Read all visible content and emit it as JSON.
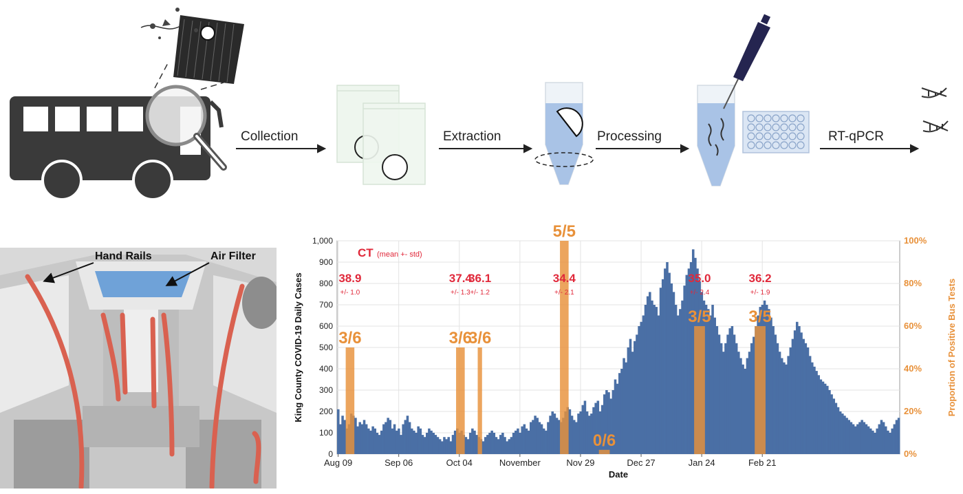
{
  "pipeline": {
    "steps": [
      {
        "label": "Collection"
      },
      {
        "label": "Extraction"
      },
      {
        "label": "Processing"
      },
      {
        "label": "RT-qPCR"
      }
    ]
  },
  "bus_interior": {
    "callouts": {
      "hand_rails": "Hand Rails",
      "air_filter": "Air Filter"
    }
  },
  "colors": {
    "cases_bar": "#4a6fa5",
    "positivity_bar": "#e8913a",
    "ct_text": "#e0283a",
    "rail_red": "#d96150",
    "filter_blue": "#6fa2d8"
  },
  "chart_data": {
    "type": "bar",
    "title": "",
    "xlabel": "Date",
    "ylabel": "King County COVID-19 Daily Cases",
    "y2label": "Proportion of Positive Bus Tests",
    "ylim": [
      0,
      1000
    ],
    "y2lim": [
      0,
      100
    ],
    "yticks": [
      "0",
      "100",
      "200",
      "300",
      "400",
      "500",
      "600",
      "700",
      "800",
      "900",
      "1,000"
    ],
    "y2ticks": [
      "0%",
      "20%",
      "40%",
      "60%",
      "80%",
      "100%"
    ],
    "xticks": [
      "Aug 09",
      "Sep 06",
      "Oct 04",
      "November",
      "Nov 29",
      "Dec 27",
      "Jan 24",
      "Feb 21"
    ],
    "ct_header": {
      "ct": "CT",
      "sub": "(mean +- std)"
    },
    "daily_cases": {
      "name": "King County Daily Cases",
      "values": [
        210,
        140,
        180,
        160,
        120,
        140,
        190,
        180,
        170,
        130,
        150,
        140,
        160,
        140,
        120,
        110,
        130,
        120,
        100,
        90,
        110,
        140,
        150,
        170,
        160,
        120,
        140,
        110,
        120,
        90,
        140,
        160,
        180,
        150,
        120,
        110,
        100,
        130,
        120,
        90,
        80,
        100,
        120,
        110,
        100,
        90,
        80,
        70,
        60,
        80,
        70,
        80,
        60,
        90,
        110,
        120,
        100,
        110,
        90,
        80,
        70,
        100,
        120,
        110,
        90,
        80,
        70,
        60,
        80,
        90,
        100,
        110,
        100,
        80,
        70,
        90,
        100,
        80,
        60,
        70,
        80,
        100,
        110,
        120,
        100,
        130,
        140,
        120,
        110,
        150,
        160,
        180,
        170,
        150,
        140,
        120,
        110,
        150,
        180,
        200,
        190,
        170,
        160,
        150,
        170,
        200,
        220,
        210,
        180,
        160,
        150,
        190,
        200,
        230,
        250,
        200,
        180,
        190,
        220,
        240,
        250,
        200,
        230,
        280,
        300,
        290,
        260,
        300,
        350,
        330,
        380,
        400,
        450,
        430,
        500,
        540,
        480,
        530,
        560,
        600,
        620,
        650,
        700,
        740,
        760,
        720,
        700,
        690,
        650,
        780,
        820,
        870,
        900,
        850,
        800,
        760,
        700,
        650,
        680,
        720,
        790,
        840,
        870,
        900,
        960,
        920,
        870,
        810,
        760,
        720,
        700,
        680,
        650,
        700,
        640,
        600,
        560,
        520,
        480,
        520,
        560,
        590,
        600,
        560,
        520,
        480,
        450,
        420,
        400,
        450,
        480,
        520,
        550,
        600,
        650,
        690,
        700,
        720,
        700,
        680,
        640,
        600,
        560,
        520,
        480,
        450,
        430,
        420,
        460,
        500,
        540,
        580,
        620,
        600,
        570,
        540,
        520,
        500,
        460,
        430,
        410,
        390,
        370,
        350,
        340,
        330,
        320,
        300,
        280,
        260,
        240,
        220,
        200,
        190,
        180,
        170,
        160,
        150,
        140,
        130,
        140,
        150,
        160,
        150,
        140,
        130,
        120,
        110,
        100,
        120,
        140,
        160,
        150,
        130,
        110,
        100,
        120,
        140,
        160,
        170
      ]
    },
    "bus_tests": {
      "name": "Proportion of Positive Bus Tests",
      "windows": [
        {
          "start_day": 4,
          "end_day": 8,
          "fraction_label": "3/6",
          "percent": 50,
          "ct_mean": "38.9",
          "ct_std": "+/- 1.0"
        },
        {
          "start_day": 55,
          "end_day": 59,
          "fraction_label": "3/6",
          "percent": 50,
          "ct_mean": "37.4",
          "ct_std": "+/- 1.3"
        },
        {
          "start_day": 65,
          "end_day": 67,
          "fraction_label": "3/6",
          "percent": 50,
          "ct_mean": "36.1",
          "ct_std": "+/- 1.2"
        },
        {
          "start_day": 103,
          "end_day": 107,
          "fraction_label": "5/5",
          "percent": 100,
          "ct_mean": "34.4",
          "ct_std": "+/- 2.1"
        },
        {
          "start_day": 121,
          "end_day": 126,
          "fraction_label": "0/6",
          "percent": 0,
          "ct_mean": "",
          "ct_std": ""
        },
        {
          "start_day": 165,
          "end_day": 170,
          "fraction_label": "3/5",
          "percent": 60,
          "ct_mean": "35.0",
          "ct_std": "+/- 2.4"
        },
        {
          "start_day": 193,
          "end_day": 198,
          "fraction_label": "3/5",
          "percent": 60,
          "ct_mean": "36.2",
          "ct_std": "+/- 1.9"
        }
      ]
    },
    "grid": true
  }
}
